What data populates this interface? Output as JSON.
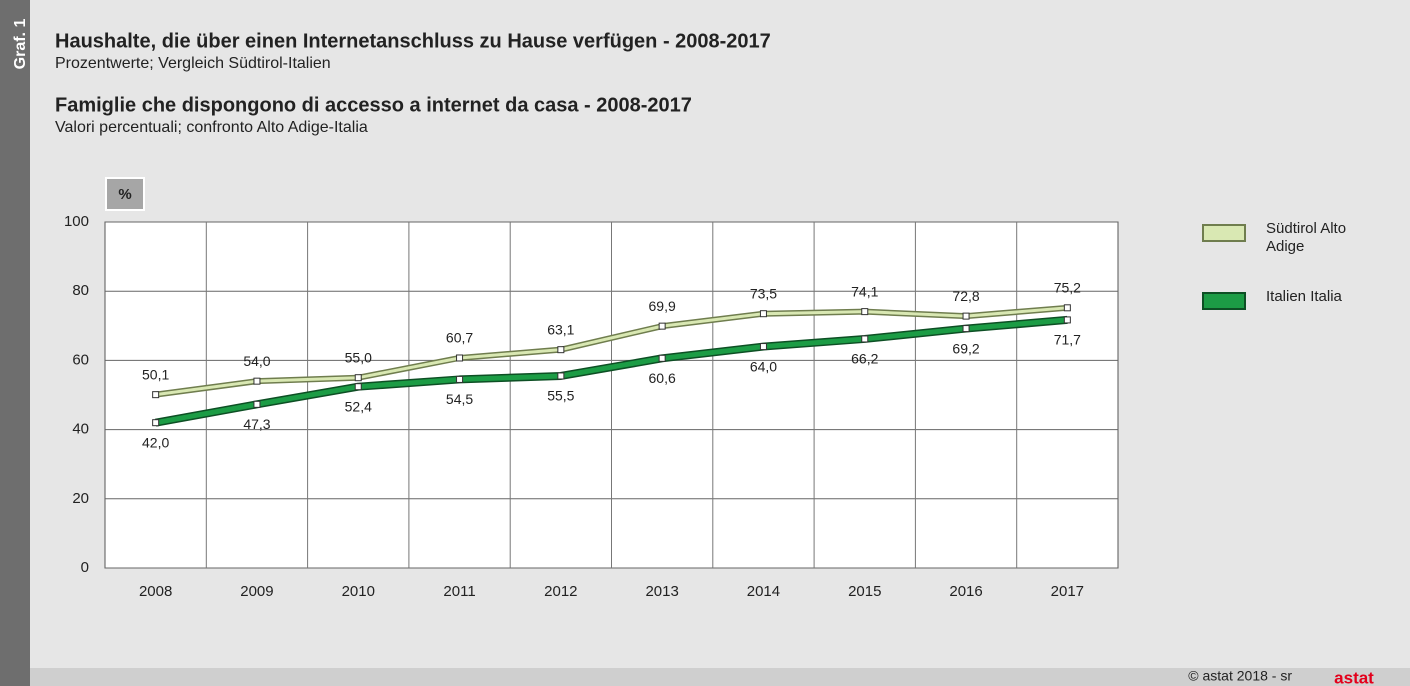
{
  "side_label": "Graf. 1",
  "copyright": "© astat 2018 - sr",
  "logo_text": "astat",
  "chart_data": {
    "type": "line",
    "title": "Haushalte, die über einen Internetanschluss zu Hause verfügen - 2008-2017",
    "subtitle": "Prozentwerte; Vergleich Südtirol-Italien",
    "title_it": "Famiglie che dispongono di accesso a internet da casa - 2008-2017",
    "subtitle_it": "Valori percentuali; confronto Alto Adige-Italia",
    "unit_label": "%",
    "categories": [
      "2008",
      "2009",
      "2010",
      "2011",
      "2012",
      "2013",
      "2014",
      "2015",
      "2016",
      "2017"
    ],
    "ylim": [
      0,
      100
    ],
    "yticks": [
      0,
      20,
      40,
      60,
      80,
      100
    ],
    "grid": true,
    "legend": "right",
    "series": [
      {
        "name": "Südtirol Alto Adige",
        "color": "#d9e8b3",
        "outline": "#6f7d4e",
        "values": [
          50.1,
          54.0,
          55.0,
          60.7,
          63.1,
          69.9,
          73.5,
          74.1,
          72.8,
          75.2
        ],
        "value_labels": [
          "50,1",
          "54,0",
          "55,0",
          "60,7",
          "63,1",
          "69,9",
          "73,5",
          "74,1",
          "72,8",
          "75,2"
        ]
      },
      {
        "name": "Italien Italia",
        "color": "#1c9c45",
        "outline": "#0d4f24",
        "values": [
          42.0,
          47.3,
          52.4,
          54.5,
          55.5,
          60.6,
          64.0,
          66.2,
          69.2,
          71.7
        ],
        "value_labels": [
          "42,0",
          "47,3",
          "52,4",
          "54,5",
          "55,5",
          "60,6",
          "64,0",
          "66,2",
          "69,2",
          "71,7"
        ]
      }
    ]
  }
}
